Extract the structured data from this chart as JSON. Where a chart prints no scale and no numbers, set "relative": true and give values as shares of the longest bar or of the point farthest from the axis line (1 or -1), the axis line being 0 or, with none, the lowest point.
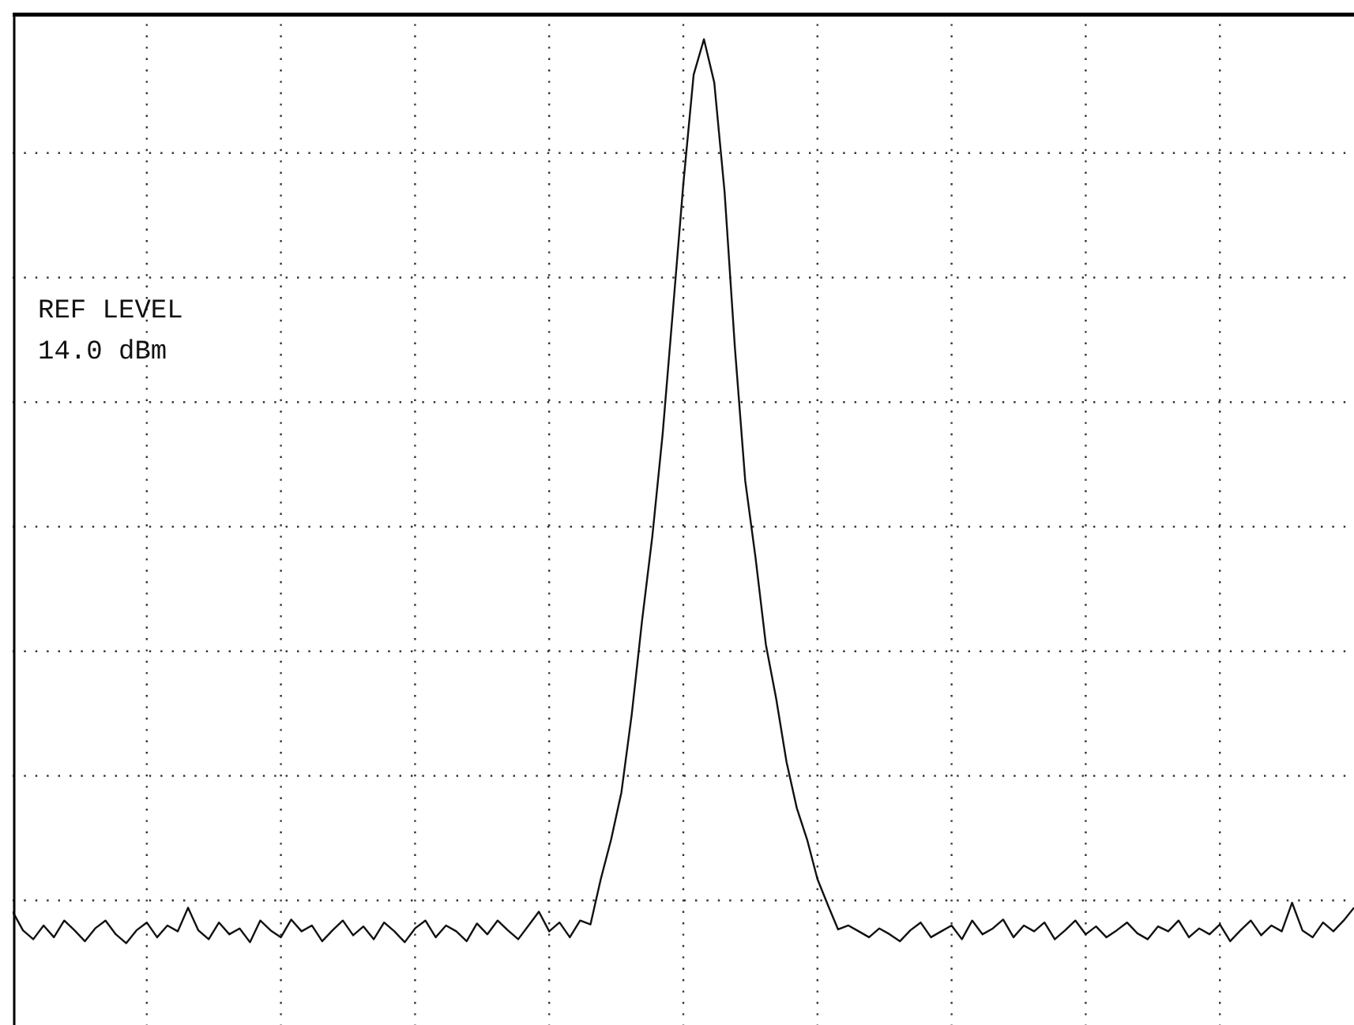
{
  "chart_data": {
    "type": "line",
    "relative": true,
    "grid": true,
    "legend": false,
    "marker": "none",
    "line_style": "solid",
    "annotations": [
      "REF LEVEL",
      "14.0 dBm"
    ],
    "categories": [
      null,
      null,
      null,
      null,
      null,
      null,
      null,
      null,
      null,
      null,
      null,
      null,
      null,
      null,
      null,
      null,
      null,
      null,
      null,
      null,
      null,
      null,
      null,
      null,
      null,
      null,
      null,
      null,
      null,
      null,
      null,
      null,
      null,
      null,
      null,
      null,
      null,
      null,
      null,
      null,
      null,
      null,
      null,
      null,
      null,
      null,
      null,
      null,
      null,
      null,
      null,
      null,
      null,
      null,
      null,
      null,
      null,
      null,
      null,
      null,
      null,
      null,
      null,
      null,
      null,
      null,
      null,
      null,
      null,
      null,
      null,
      null,
      null,
      null,
      null,
      null,
      null,
      null,
      null,
      null,
      null,
      null,
      null,
      null,
      null,
      null,
      null,
      null,
      null,
      null,
      null,
      null,
      null,
      null,
      null,
      null,
      null,
      null,
      null,
      null,
      null,
      null,
      null,
      null,
      null,
      null,
      null,
      null,
      null,
      null,
      null,
      null,
      null,
      null,
      null,
      null,
      null,
      null,
      null,
      null,
      null,
      null,
      null,
      null,
      null,
      null,
      null,
      null,
      null,
      null,
      null
    ],
    "series": [
      {
        "color": "#111111",
        "values": [
          0.115,
          0.096,
          0.087,
          0.101,
          0.089,
          0.106,
          0.096,
          0.085,
          0.098,
          0.106,
          0.092,
          0.083,
          0.096,
          0.104,
          0.089,
          0.101,
          0.095,
          0.119,
          0.096,
          0.087,
          0.104,
          0.092,
          0.098,
          0.084,
          0.106,
          0.096,
          0.089,
          0.107,
          0.095,
          0.101,
          0.085,
          0.096,
          0.106,
          0.091,
          0.1,
          0.087,
          0.104,
          0.095,
          0.084,
          0.098,
          0.106,
          0.089,
          0.101,
          0.095,
          0.085,
          0.103,
          0.092,
          0.106,
          0.096,
          0.087,
          0.101,
          0.115,
          0.095,
          0.104,
          0.089,
          0.106,
          0.102,
          0.148,
          0.188,
          0.236,
          0.315,
          0.41,
          0.496,
          0.6,
          0.726,
          0.853,
          0.964,
          1,
          0.956,
          0.845,
          0.687,
          0.552,
          0.474,
          0.386,
          0.331,
          0.267,
          0.22,
          0.188,
          0.148,
          0.122,
          0.097,
          0.101,
          0.095,
          0.089,
          0.098,
          0.092,
          0.085,
          0.096,
          0.104,
          0.089,
          0.095,
          0.101,
          0.087,
          0.106,
          0.092,
          0.098,
          0.107,
          0.089,
          0.101,
          0.095,
          0.104,
          0.087,
          0.096,
          0.106,
          0.092,
          0.1,
          0.089,
          0.096,
          0.104,
          0.093,
          0.087,
          0.1,
          0.095,
          0.106,
          0.089,
          0.098,
          0.092,
          0.102,
          0.085,
          0.096,
          0.106,
          0.091,
          0.101,
          0.095,
          0.124,
          0.096,
          0.089,
          0.104,
          0.095,
          0.106,
          0.119
        ]
      }
    ]
  }
}
